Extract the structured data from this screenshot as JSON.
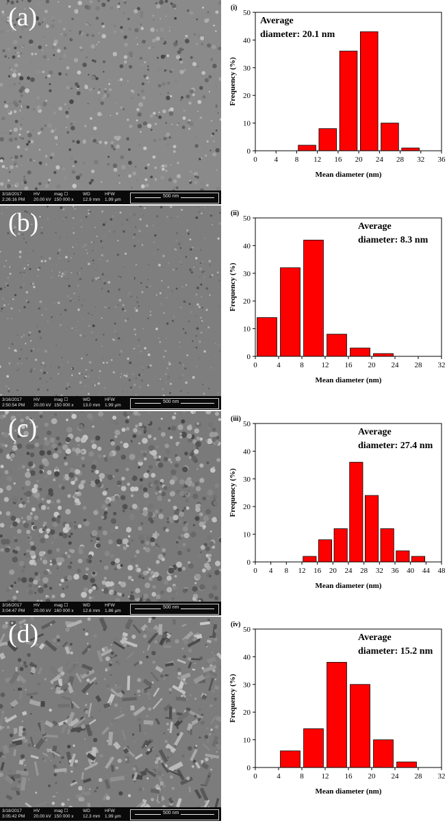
{
  "panels": [
    {
      "sem_label": "(a)",
      "infobar": {
        "date": "3/18/2017",
        "time": "2:26:16 PM",
        "hv": "20.00 kV",
        "mag": "150 000 x",
        "wd": "12.9 mm",
        "hfw": "1.99 μm",
        "scale": "500 nm"
      },
      "chart_tag": "(i)",
      "average_line1": "Average",
      "average_line2": "diameter: 20.1 nm"
    },
    {
      "sem_label": "(b)",
      "infobar": {
        "date": "3/16/2017",
        "time": "2:50:54 PM",
        "hv": "20.00 kV",
        "mag": "150 000 x",
        "wd": "13.0 mm",
        "hfw": "1.99 μm",
        "scale": "500 nm"
      },
      "chart_tag": "(ii)",
      "average_line1": "Average",
      "average_line2": "diameter: 8.3 nm"
    },
    {
      "sem_label": "(c)",
      "infobar": {
        "date": "3/16/2017",
        "time": "3:04:47 PM",
        "hv": "20.00 kV",
        "mag": "160 000 x",
        "wd": "12.6 mm",
        "hfw": "1.86 μm",
        "scale": "500 nm"
      },
      "chart_tag": "(iii)",
      "average_line1": "Average",
      "average_line2": "diameter: 27.4 nm"
    },
    {
      "sem_label": "(d)",
      "infobar": {
        "date": "3/18/2017",
        "time": "3:05:42 PM",
        "hv": "20.00 kV",
        "mag": "150 000 x",
        "wd": "12.3 mm",
        "hfw": "1.99 μm",
        "scale": "500 nm"
      },
      "chart_tag": "(iv)",
      "average_line1": "Average",
      "average_line2": "diameter: 15.2 nm"
    }
  ],
  "infobar_headers": {
    "hv": "HV",
    "mag": "mag ☐",
    "wd": "WD",
    "hfw": "HFW"
  },
  "sem_tones": [
    "#8a8a8a",
    "#7e7e7e",
    "#7a7a7a",
    "#7c7c7c"
  ],
  "chart_data": [
    {
      "type": "bar",
      "xlabel": "Mean diameter (nm)",
      "ylabel": "Frequency (%)",
      "xlim": [
        0,
        36
      ],
      "ylim": [
        0,
        50
      ],
      "xticks": [
        0,
        4,
        8,
        12,
        16,
        20,
        24,
        28,
        32,
        36
      ],
      "yticks": [
        0,
        10,
        20,
        30,
        40,
        50
      ],
      "bin_width": 3.4,
      "bar_color": "#ff0000",
      "bins": [
        {
          "x": 10,
          "value": 2
        },
        {
          "x": 14,
          "value": 8
        },
        {
          "x": 18,
          "value": 36
        },
        {
          "x": 22,
          "value": 43
        },
        {
          "x": 26,
          "value": 10
        },
        {
          "x": 30,
          "value": 1
        }
      ]
    },
    {
      "type": "bar",
      "xlabel": "Mean diameter (nm)",
      "ylabel": "Frequency (%)",
      "xlim": [
        0,
        32
      ],
      "ylim": [
        0,
        50
      ],
      "xticks": [
        0,
        4,
        8,
        12,
        16,
        20,
        24,
        28,
        32
      ],
      "yticks": [
        0,
        10,
        20,
        30,
        40,
        50
      ],
      "bin_width": 3.4,
      "bar_color": "#ff0000",
      "bins": [
        {
          "x": 2,
          "value": 14
        },
        {
          "x": 6,
          "value": 32
        },
        {
          "x": 10,
          "value": 42
        },
        {
          "x": 14,
          "value": 8
        },
        {
          "x": 18,
          "value": 3
        },
        {
          "x": 22,
          "value": 1
        }
      ]
    },
    {
      "type": "bar",
      "xlabel": "Mean diameter (nm)",
      "ylabel": "Frequency (%)",
      "xlim": [
        0,
        48
      ],
      "ylim": [
        0,
        50
      ],
      "xticks": [
        0,
        4,
        8,
        12,
        16,
        20,
        24,
        28,
        32,
        36,
        40,
        44,
        48
      ],
      "yticks": [
        0,
        10,
        20,
        30,
        40,
        50
      ],
      "bin_width": 3.4,
      "bar_color": "#ff0000",
      "bins": [
        {
          "x": 14,
          "value": 2
        },
        {
          "x": 18,
          "value": 8
        },
        {
          "x": 22,
          "value": 12
        },
        {
          "x": 26,
          "value": 36
        },
        {
          "x": 30,
          "value": 24
        },
        {
          "x": 34,
          "value": 12
        },
        {
          "x": 38,
          "value": 4
        },
        {
          "x": 42,
          "value": 2
        }
      ]
    },
    {
      "type": "bar",
      "xlabel": "Mean diameter (nm)",
      "ylabel": "Frequency (%)",
      "xlim": [
        0,
        32
      ],
      "ylim": [
        0,
        50
      ],
      "xticks": [
        0,
        4,
        8,
        12,
        16,
        20,
        24,
        28,
        32
      ],
      "yticks": [
        0,
        10,
        20,
        30,
        40,
        50
      ],
      "bin_width": 3.4,
      "bar_color": "#ff0000",
      "bins": [
        {
          "x": 6,
          "value": 6
        },
        {
          "x": 10,
          "value": 14
        },
        {
          "x": 14,
          "value": 38
        },
        {
          "x": 18,
          "value": 30
        },
        {
          "x": 22,
          "value": 10
        },
        {
          "x": 26,
          "value": 2
        }
      ]
    }
  ]
}
